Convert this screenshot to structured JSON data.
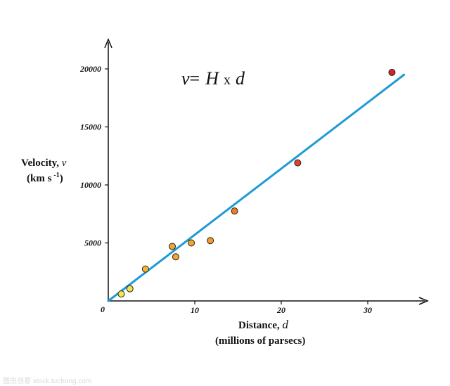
{
  "chart_data": {
    "type": "scatter",
    "equation": {
      "v": "v",
      "equals": "=",
      "H": "H",
      "times": "x",
      "d": "d"
    },
    "ylabel_line1": "Velocity, ",
    "ylabel_var": "v",
    "ylabel_line2": "(km s",
    "ylabel_exp": "-1",
    "ylabel_close": ")",
    "xlabel_line1": "Distance, ",
    "xlabel_var": "d",
    "xlabel_line2": "(millions of parsecs)",
    "xlim": [
      0,
      37
    ],
    "ylim": [
      0,
      22000
    ],
    "xticks": [
      10,
      20,
      30
    ],
    "yticks": [
      5000,
      10000,
      15000,
      20000
    ],
    "origin_label": "0",
    "points": [
      {
        "x": 1.5,
        "y": 600,
        "color": "#f4e84a"
      },
      {
        "x": 2.5,
        "y": 1050,
        "color": "#f4e04a"
      },
      {
        "x": 4.3,
        "y": 2750,
        "color": "#f5b733"
      },
      {
        "x": 7.4,
        "y": 4700,
        "color": "#f3a52d"
      },
      {
        "x": 7.8,
        "y": 3800,
        "color": "#f3a52d"
      },
      {
        "x": 9.6,
        "y": 5000,
        "color": "#f3a52d"
      },
      {
        "x": 11.8,
        "y": 5200,
        "color": "#f29a2b"
      },
      {
        "x": 14.6,
        "y": 7750,
        "color": "#ee7a2a"
      },
      {
        "x": 21.9,
        "y": 11900,
        "color": "#e0452c"
      },
      {
        "x": 32.8,
        "y": 19700,
        "color": "#d8222a"
      }
    ],
    "fit_line": {
      "x0": 0,
      "y0": 0,
      "x1": 34.2,
      "y1": 19500,
      "color": "#1e9ad6"
    },
    "grid": false,
    "legend": "none"
  },
  "watermark_text": "图虫创意 stock.tuchong.com"
}
